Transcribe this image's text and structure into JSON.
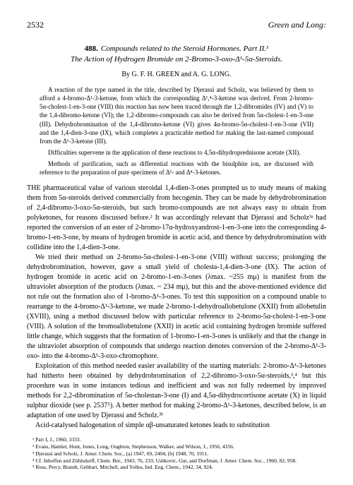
{
  "header": {
    "page_number": "2532",
    "authors": "Green and Long:"
  },
  "title": {
    "number": "488.",
    "line1": "Compounds related to the Steroid Hormones. Part II.¹",
    "line2": "The Action of Hydrogen Bromide on 2-Bromo-3-oxo-Δ¹-5α-Steroids."
  },
  "byline": "By G. F. H. GREEN and A. G. LONG.",
  "abstract": {
    "p1": "A reaction of the type named in the title, described by Djerassi and Scholz, was believed by them to afford a 4-bromo-Δ¹-3-ketone, from which the corresponding Δ¹,⁴-3-ketone was derived. From 2-bromo-5α-cholest-1-en-3-one (VIII) this reaction has now been traced through the 1,2-dibromides (IV) and (V) to the 1,4-dibromo-ketone (VI); the 1,2-dibromo-compounds can also be derived from 5α-cholest-1-en-3-one (III). Dehydrobromination of the 1,4-dibromo-ketone (VI) gives 4α-bromo-5α-cholest-1-en-3-one (VII) and the 1,4-dien-3-one (IX), which completes a practicable method for making the last-named compound from the Δ¹-3-ketone (III).",
    "p2": "Difficulties supervene in the application of these reactions to 4,5α-dihydroprednisone acetate (XII).",
    "p3": "Methods of purification, such as differential reactions with the bisulphite ion, are discussed with reference to the preparation of pure specimens of Δ¹- and Δ⁴-3-ketones."
  },
  "body": {
    "p1_lead": "THE",
    "p1": " pharmaceutical value of various steroidal 1,4-dien-3-ones prompted us to study means of making them from 5α-steroids derived commercially from hecogenin. They can be made by dehydrobromination of 2,4-dibromo-3-oxo-5α-steroids, but such bromo-compounds are not always easy to obtain from polyketones, for reasons discussed before.² It was accordingly relevant that Djerassi and Scholz³ᵃ had reported the conversion of an ester of 2-bromo-17α-hydroxyandrost-1-en-3-one into the corresponding 4-bromo-1-en-3-one, by means of hydrogen bromide in acetic acid, and thence by dehydrobromination with collidine into the 1,4-dien-3-one.",
    "p2": "We tried their method on 2-bromo-5α-cholest-1-en-3-one (VIII) without success; prolonging the dehydrobromination, however, gave a small yield of cholesta-1,4-dien-3-one (IX). The action of hydrogen bromide in acetic acid on 2-bromo-1-en-3-ones (λmax. ~255 mμ) is manifest from the ultraviolet absorption of the products (λmax. ~ 234 mμ), but this and the above-mentioned evidence did not rule out the formation also of 1-bromo-Δ¹-3-ones. To test this supposition on a compound unable to rearrange to the 4-bromo-Δ¹-3-ketone, we made 2-bromo-1-dehydroallobetulone (XXII) from allobetulin (XVIII), using a method discussed below with particular reference to 2-bromo-5α-cholest-1-en-3-one (VIII). A solution of the bromoallobetulone (XXII) in acetic acid containing hydrogen bromide suffered little change, which suggests that the formation of 1-bromo-1-en-3-ones is unlikely and that the change in the ultraviolet absorption of compounds that undergo reaction denotes conversion of the 2-bromo-Δ¹-3-oxo- into the 4-bromo-Δ¹-3-oxo-chromophore.",
    "p3": "Exploitation of this method needed easier availability of the starting materials: 2-bromo-Δ¹-3-ketones had hitherto been obtained by dehydrobromination of 2,2-dibromo-3-oxo-5α-steroids,³,⁴ but this procedure was in some instances tedious and inefficient and was not fully redeemed by improved methods for 2,2-dibromination of 5α-cholestan-3-one (I) and 4,5α-dihydrocortisone acetate (X) in liquid sulphur dioxide (see p. 2537⁵). A better method for making 2-bromo-Δ¹-3-ketones, described below, is an adaptation of one used by Djerassi and Scholz.³ᵇ",
    "p4": "Acid-catalysed halogenation of simple αβ-unsaturated ketones leads to substitution"
  },
  "footnotes": {
    "f1": "¹ Part I, J., 1960, 3333.",
    "f2": "² Evans, Hamlet, Hunt, Jones, Long, Oughton, Stephenson, Walker, and Wilson, J., 1956, 4356.",
    "f3": "³ Djerassi and Scholz, J. Amer. Chem. Soc., (a) 1947, 69, 2404; (b) 1948, 70, 1911.",
    "f4": "⁴ Cf. Inhoffen and Zühlsdorff, Chem. Ber., 1943, 76, 233; Ushkovic, Gut, and Dorfman, J. Amer. Chem. Soc., 1960, 82, 958.",
    "f5": "⁵ Ross, Percy, Brandt, Gebhart, Mitchell, and Yolles, Ind. Eng. Chem., 1942, 34, 924."
  }
}
